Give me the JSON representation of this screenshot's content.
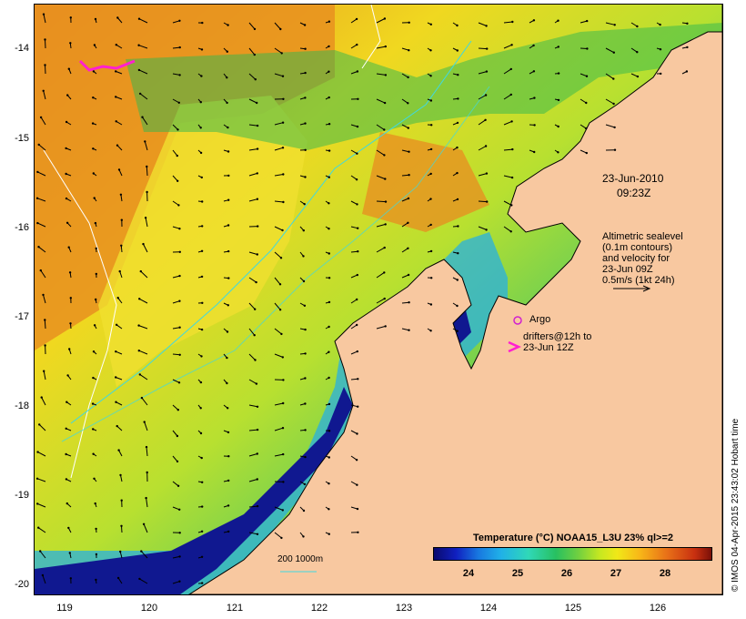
{
  "map": {
    "date_label": "23-Jun-2010",
    "time_label": "09:23Z",
    "legend_lines": [
      "Altimetric sealevel",
      "(0.1m contours)",
      "and velocity for",
      "23-Jun 09Z",
      "0.5m/s (1kt 24h)"
    ],
    "argo_label": "Argo",
    "drifters_lines": [
      "drifters@12h to",
      "23-Jun 12Z"
    ],
    "depth_label": "200  1000m",
    "credit": "© IMOS 04-Apr-2015 23:43:02 Hobart time",
    "y_ticks": [
      "-14",
      "-15",
      "-16",
      "-17",
      "-18",
      "-19",
      "-20"
    ],
    "x_ticks": [
      "119",
      "120",
      "121",
      "122",
      "123",
      "124",
      "125",
      "126"
    ],
    "colorbar": {
      "title": "Temperature (°C) NOAA15_L3U 23% ql>=2",
      "ticks": [
        "24",
        "25",
        "26",
        "27",
        "28"
      ]
    },
    "colors": {
      "land": "#f8c8a0",
      "argo": "#d020d0",
      "drifter": "#ff20d0",
      "contour": "#40d8e0"
    }
  }
}
